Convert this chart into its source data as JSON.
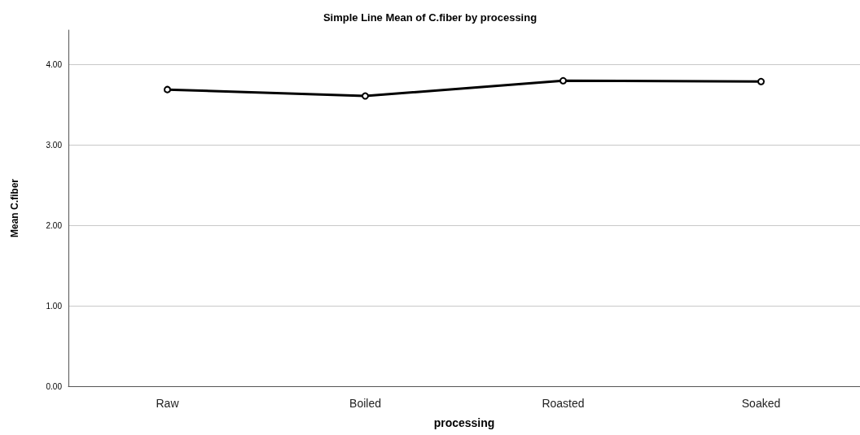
{
  "chart_data": {
    "type": "line",
    "title": "Simple Line Mean of C.fiber by processing",
    "xlabel": "processing",
    "ylabel": "Mean C.fiber",
    "categories": [
      "Raw",
      "Boiled",
      "Roasted",
      "Soaked"
    ],
    "series": [
      {
        "color": "#000000",
        "values": [
          3.69,
          3.61,
          3.8,
          3.79
        ]
      }
    ],
    "ylim": [
      0,
      4.43
    ],
    "yticks": [
      {
        "value": 0,
        "label": "0.00"
      },
      {
        "value": 1,
        "label": "1.00"
      },
      {
        "value": 2,
        "label": "2.00"
      },
      {
        "value": 3,
        "label": "3.00"
      },
      {
        "value": 4,
        "label": "4.00"
      }
    ],
    "grid": "y",
    "marker": "circle",
    "line_style": "solid"
  }
}
